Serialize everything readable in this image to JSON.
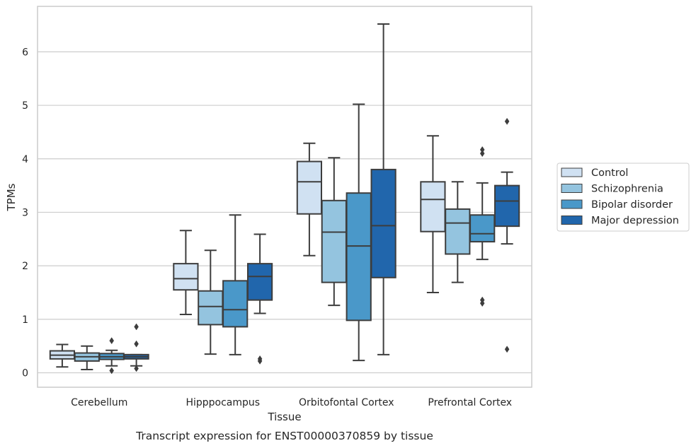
{
  "chart_data": {
    "type": "box",
    "title": "",
    "caption": "Transcript expression for ENST00000370859 by tissue",
    "xlabel": "Tissue",
    "ylabel": "TPMs",
    "ylim": [
      -0.27,
      6.85
    ],
    "yticks": [
      0,
      1,
      2,
      3,
      4,
      5,
      6
    ],
    "grid": "horizontal",
    "legend_position": "right",
    "categories": [
      "Cerebellum",
      "Hipppocampus",
      "Orbitofontal Cortex",
      "Prefrontal Cortex"
    ],
    "series": [
      {
        "name": "Control",
        "color": "#d0e1f2",
        "boxes": [
          {
            "whislo": 0.11,
            "q1": 0.26,
            "med": 0.33,
            "q3": 0.41,
            "whishi": 0.53,
            "fliers": []
          },
          {
            "whislo": 1.09,
            "q1": 1.55,
            "med": 1.76,
            "q3": 2.04,
            "whishi": 2.66,
            "fliers": []
          },
          {
            "whislo": 2.19,
            "q1": 2.97,
            "med": 3.57,
            "q3": 3.95,
            "whishi": 4.29,
            "fliers": []
          },
          {
            "whislo": 1.5,
            "q1": 2.64,
            "med": 3.24,
            "q3": 3.57,
            "whishi": 4.43,
            "fliers": []
          }
        ]
      },
      {
        "name": "Schizophrenia",
        "color": "#94c4df",
        "boxes": [
          {
            "whislo": 0.06,
            "q1": 0.22,
            "med": 0.3,
            "q3": 0.37,
            "whishi": 0.5,
            "fliers": []
          },
          {
            "whislo": 0.35,
            "q1": 0.9,
            "med": 1.24,
            "q3": 1.53,
            "whishi": 2.29,
            "fliers": []
          },
          {
            "whislo": 1.26,
            "q1": 1.69,
            "med": 2.63,
            "q3": 3.22,
            "whishi": 4.02,
            "fliers": []
          },
          {
            "whislo": 1.69,
            "q1": 2.22,
            "med": 2.8,
            "q3": 3.06,
            "whishi": 3.57,
            "fliers": []
          }
        ]
      },
      {
        "name": "Bipolar disorder",
        "color": "#4a98c9",
        "boxes": [
          {
            "whislo": 0.13,
            "q1": 0.25,
            "med": 0.3,
            "q3": 0.36,
            "whishi": 0.42,
            "fliers": [
              0.6,
              0.04
            ]
          },
          {
            "whislo": 0.34,
            "q1": 0.86,
            "med": 1.18,
            "q3": 1.72,
            "whishi": 2.95,
            "fliers": []
          },
          {
            "whislo": 0.23,
            "q1": 0.98,
            "med": 2.37,
            "q3": 3.36,
            "whishi": 5.02,
            "fliers": []
          },
          {
            "whislo": 2.12,
            "q1": 2.45,
            "med": 2.6,
            "q3": 2.95,
            "whishi": 3.55,
            "fliers": [
              4.17,
              4.1,
              1.36,
              1.3
            ]
          }
        ]
      },
      {
        "name": "Major depression",
        "color": "#2166ac",
        "boxes": [
          {
            "whislo": 0.13,
            "q1": 0.26,
            "med": 0.3,
            "q3": 0.34,
            "whishi": 0.34,
            "fliers": [
              0.86,
              0.54,
              0.08
            ]
          },
          {
            "whislo": 1.11,
            "q1": 1.36,
            "med": 1.8,
            "q3": 2.04,
            "whishi": 2.59,
            "fliers": [
              0.26,
              0.22
            ]
          },
          {
            "whislo": 0.34,
            "q1": 1.78,
            "med": 2.75,
            "q3": 3.8,
            "whishi": 6.52,
            "fliers": []
          },
          {
            "whislo": 2.41,
            "q1": 2.74,
            "med": 3.21,
            "q3": 3.5,
            "whishi": 3.75,
            "fliers": [
              4.7,
              0.44
            ]
          }
        ]
      }
    ]
  }
}
